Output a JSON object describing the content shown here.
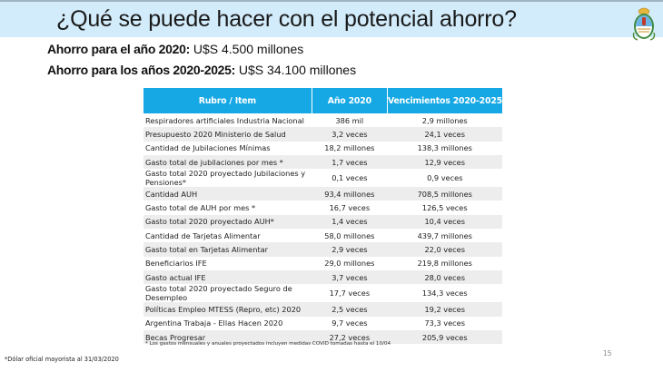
{
  "header": {
    "title": "¿Qué se puede hacer con el potencial ahorro?",
    "emblem": "argentina-coat-of-arms",
    "bar_color": "#d3ecfb"
  },
  "savings": [
    {
      "label": "Ahorro para el año 2020:",
      "value": "U$S 4.500 millones"
    },
    {
      "label": "Ahorro para los años 2020-2025:",
      "value": "U$S 34.100 millones"
    }
  ],
  "table": {
    "header_color": "#15a8e5",
    "columns": [
      "Rubro / Item",
      "Año 2020",
      "Vencimientos 2020-2025"
    ],
    "rows": [
      {
        "item": "Respiradores artificiales Industria Nacional",
        "y2020": "386 mil",
        "y2025": "2,9 millones"
      },
      {
        "item": "Presupuesto 2020 Ministerio de Salud",
        "y2020": "3,2 veces",
        "y2025": "24,1 veces"
      },
      {
        "item": "Cantidad de Jubilaciones Mínimas",
        "y2020": "18,2 millones",
        "y2025": "138,3 millones"
      },
      {
        "item": "Gasto total de jubilaciones por mes *",
        "y2020": "1,7 veces",
        "y2025": "12,9 veces"
      },
      {
        "item": "Gasto total 2020 proyectado Jubilaciones y Pensiones*",
        "y2020": "0,1 veces",
        "y2025": "0,9 veces"
      },
      {
        "item": "Cantidad AUH",
        "y2020": "93,4 millones",
        "y2025": "708,5 millones"
      },
      {
        "item": "Gasto total de AUH por mes *",
        "y2020": "16,7 veces",
        "y2025": "126,5 veces"
      },
      {
        "item": "Gasto total 2020 proyectado AUH*",
        "y2020": "1,4 veces",
        "y2025": "10,4 veces"
      },
      {
        "item": "Cantidad de Tarjetas Alimentar",
        "y2020": "58,0 millones",
        "y2025": "439,7 millones"
      },
      {
        "item": "Gasto total en Tarjetas Alimentar",
        "y2020": "2,9 veces",
        "y2025": "22,0 veces"
      },
      {
        "item": "Beneficiarios IFE",
        "y2020": "29,0 millones",
        "y2025": "219,8 millones"
      },
      {
        "item": "Gasto actual IFE",
        "y2020": "3,7 veces",
        "y2025": "28,0 veces"
      },
      {
        "item": "Gasto total 2020 proyectado Seguro de Desempleo",
        "y2020": "17,7 veces",
        "y2025": "134,3 veces"
      },
      {
        "item": "Políticas Empleo MTESS (Repro, etc) 2020",
        "y2020": "2,5 veces",
        "y2025": "19,2 veces"
      },
      {
        "item": "Argentina Trabaja - Ellas Hacen 2020",
        "y2020": "9,7 veces",
        "y2025": "73,3 veces"
      },
      {
        "item": "Becas Progresar",
        "y2020": "27,2 veces",
        "y2025": "205,9 veces"
      }
    ],
    "note": "* Los gastos mensuales y anuales proyectados incluyen medidas COVID tomadas hasta el 10/04"
  },
  "footnote": "*Dólar oficial mayorista al 31/03/2020",
  "page_number": "15"
}
